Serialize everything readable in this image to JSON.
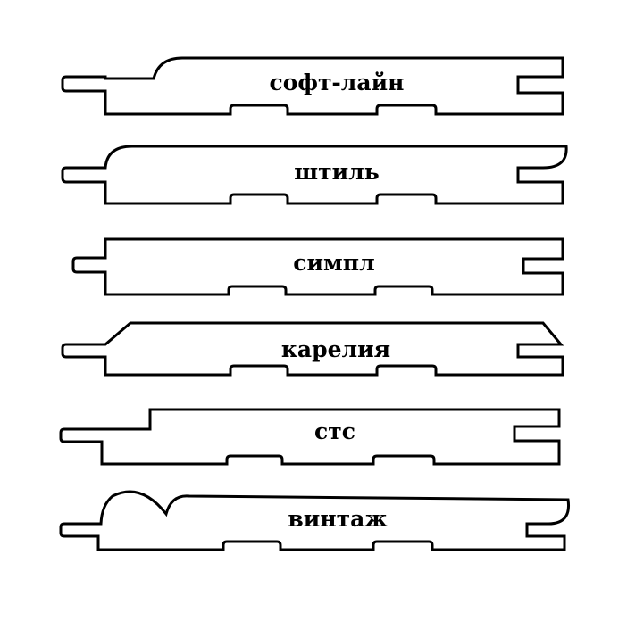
{
  "diagram": {
    "stroke_color": "#000000",
    "background": "#ffffff",
    "profiles": [
      {
        "id": "soft-line",
        "label": "софт-лайн"
      },
      {
        "id": "shtil",
        "label": "штиль"
      },
      {
        "id": "simpl",
        "label": "симпл"
      },
      {
        "id": "karelia",
        "label": "карелия"
      },
      {
        "id": "sts",
        "label": "стс"
      },
      {
        "id": "vintazh",
        "label": "винтаж"
      }
    ]
  }
}
